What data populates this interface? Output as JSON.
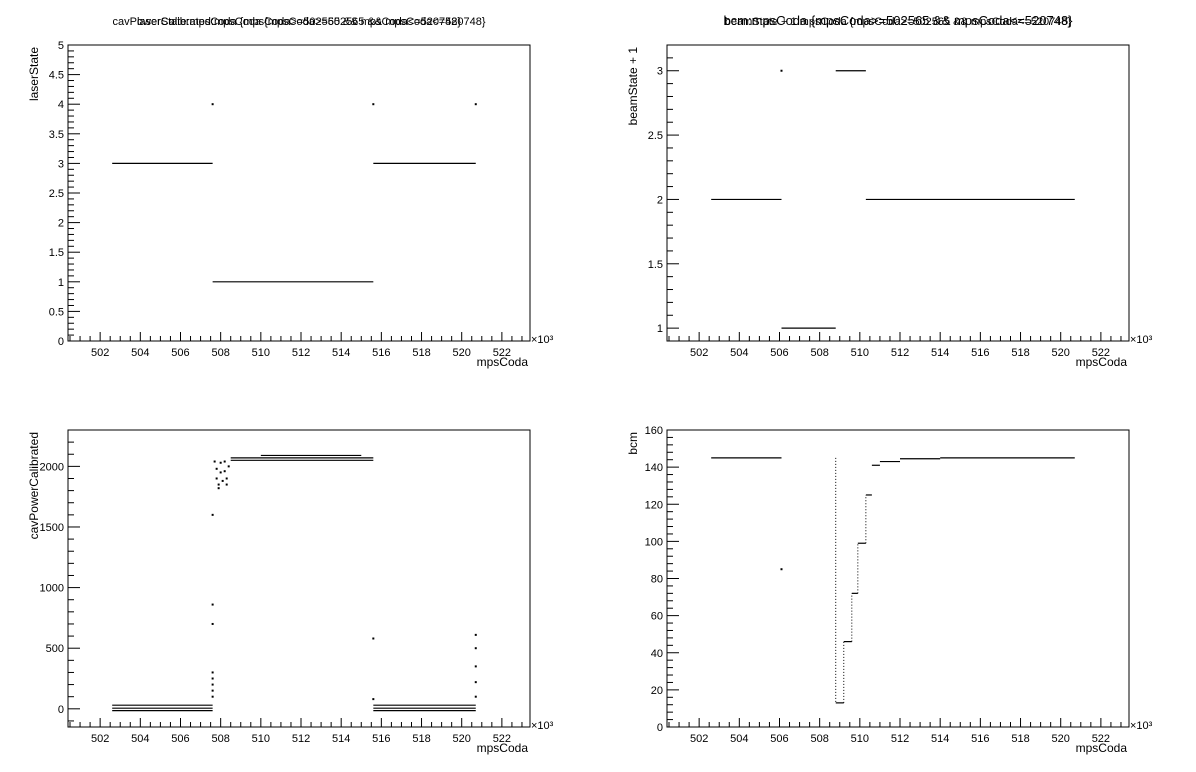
{
  "chart_data": [
    {
      "type": "scatter",
      "title": "laserState:mpsCoda {mpsCoda>=502565 && mpsCoda<=520748}",
      "xlabel": "mpsCoda",
      "ylabel": "laserState",
      "x_multiplier": "×10³",
      "xlim": [
        500.4,
        523.4
      ],
      "ylim": [
        0,
        5
      ],
      "x_ticks": [
        502,
        504,
        506,
        508,
        510,
        512,
        514,
        516,
        518,
        520,
        522
      ],
      "y_ticks": [
        0,
        0.5,
        1,
        1.5,
        2,
        2.5,
        3,
        3.5,
        4,
        4.5,
        5
      ],
      "segments": [
        {
          "x0": 502.6,
          "x1": 507.6,
          "y": 3
        },
        {
          "x0": 507.6,
          "x1": 515.6,
          "y": 1
        },
        {
          "x0": 515.6,
          "x1": 520.7,
          "y": 3
        }
      ],
      "points": [
        [
          507.6,
          4
        ],
        [
          515.6,
          4
        ],
        [
          520.7,
          4
        ]
      ]
    },
    {
      "type": "scatter",
      "title": "beamState + 1:mpsCoda {mpsCoda>=502565 && mpsCoda<=520748}",
      "xlabel": "mpsCoda",
      "ylabel": "beamState + 1",
      "x_multiplier": "×10³",
      "xlim": [
        500.4,
        523.4
      ],
      "ylim": [
        0.9,
        3.2
      ],
      "x_ticks": [
        502,
        504,
        506,
        508,
        510,
        512,
        514,
        516,
        518,
        520,
        522
      ],
      "y_ticks": [
        1,
        1.5,
        2,
        2.5,
        3
      ],
      "segments": [
        {
          "x0": 502.6,
          "x1": 506.1,
          "y": 2
        },
        {
          "x0": 506.1,
          "x1": 508.8,
          "y": 1
        },
        {
          "x0": 508.8,
          "x1": 510.3,
          "y": 3
        },
        {
          "x0": 510.3,
          "x1": 520.7,
          "y": 2
        }
      ],
      "points": [
        [
          506.1,
          3
        ]
      ]
    },
    {
      "type": "scatter",
      "title": "cavPowerCalibrated:mpsCoda {mpsCoda>=502565 && mpsCoda<=520748}",
      "xlabel": "mpsCoda",
      "ylabel": "cavPowerCalibrated",
      "x_multiplier": "×10³",
      "xlim": [
        500.4,
        523.4
      ],
      "ylim": [
        -150,
        2300
      ],
      "x_ticks": [
        502,
        504,
        506,
        508,
        510,
        512,
        514,
        516,
        518,
        520,
        522
      ],
      "y_ticks": [
        0,
        500,
        1000,
        1500,
        2000
      ],
      "segments": [
        {
          "x0": 502.6,
          "x1": 507.6,
          "y": 30
        },
        {
          "x0": 502.6,
          "x1": 507.6,
          "y": 5
        },
        {
          "x0": 502.6,
          "x1": 507.6,
          "y": -15
        },
        {
          "x0": 508.5,
          "x1": 515.6,
          "y": 2070
        },
        {
          "x0": 508.5,
          "x1": 515.6,
          "y": 2050
        },
        {
          "x0": 510.0,
          "x1": 515.0,
          "y": 2090
        },
        {
          "x0": 515.6,
          "x1": 520.7,
          "y": 30
        },
        {
          "x0": 515.6,
          "x1": 520.7,
          "y": 5
        },
        {
          "x0": 515.6,
          "x1": 520.7,
          "y": -15
        }
      ],
      "points": [
        [
          507.6,
          1600
        ],
        [
          507.6,
          860
        ],
        [
          507.6,
          700
        ],
        [
          507.6,
          300
        ],
        [
          507.6,
          250
        ],
        [
          507.6,
          200
        ],
        [
          507.6,
          150
        ],
        [
          507.6,
          100
        ],
        [
          507.7,
          2040
        ],
        [
          507.8,
          1980
        ],
        [
          507.8,
          1900
        ],
        [
          507.9,
          1850
        ],
        [
          507.9,
          1820
        ],
        [
          508.0,
          2030
        ],
        [
          508.0,
          1950
        ],
        [
          508.1,
          1880
        ],
        [
          508.2,
          2040
        ],
        [
          508.2,
          1960
        ],
        [
          508.3,
          1900
        ],
        [
          508.3,
          1850
        ],
        [
          508.4,
          2000
        ],
        [
          515.6,
          580
        ],
        [
          515.6,
          80
        ],
        [
          520.7,
          610
        ],
        [
          520.7,
          500
        ],
        [
          520.7,
          350
        ],
        [
          520.7,
          220
        ],
        [
          520.7,
          100
        ]
      ]
    },
    {
      "type": "scatter",
      "title": "bcm:mpsCoda {mpsCoda>=502565 && mpsCoda<=520748}",
      "xlabel": "mpsCoda",
      "ylabel": "bcm",
      "x_multiplier": "×10³",
      "xlim": [
        500.4,
        523.4
      ],
      "ylim": [
        0,
        160
      ],
      "x_ticks": [
        502,
        504,
        506,
        508,
        510,
        512,
        514,
        516,
        518,
        520,
        522
      ],
      "y_ticks": [
        0,
        20,
        40,
        60,
        80,
        100,
        120,
        140,
        160
      ],
      "segments": [
        {
          "x0": 502.6,
          "x1": 506.1,
          "y": 145
        },
        {
          "x0": 508.8,
          "x1": 509.2,
          "y": 13
        },
        {
          "x0": 509.2,
          "x1": 509.6,
          "y": 46
        },
        {
          "x0": 509.6,
          "x1": 509.9,
          "y": 72
        },
        {
          "x0": 509.9,
          "x1": 510.3,
          "y": 99
        },
        {
          "x0": 510.3,
          "x1": 510.6,
          "y": 125
        },
        {
          "x0": 510.6,
          "x1": 511.0,
          "y": 141
        },
        {
          "x0": 511.0,
          "x1": 512.0,
          "y": 143
        },
        {
          "x0": 512.0,
          "x1": 514.0,
          "y": 144.5
        },
        {
          "x0": 514.0,
          "x1": 520.7,
          "y": 145
        }
      ],
      "points": [
        [
          506.1,
          85
        ]
      ]
    }
  ]
}
